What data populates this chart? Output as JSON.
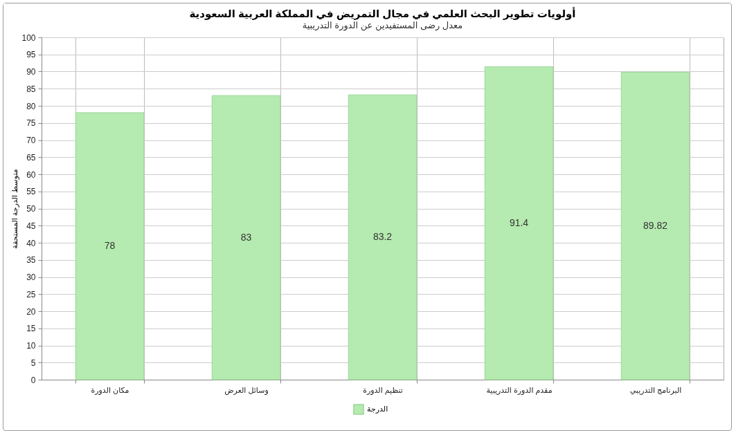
{
  "chart_data": {
    "type": "bar",
    "title": "أولويات تطوير البحث العلمي في مجال التمريض في المملكة العربية السعودية",
    "subtitle": "معدل رضى المستفيدين عن الدورة التدريبية",
    "ylabel": "متوسط الدرجة المستحقة",
    "categories": [
      "مكان الدورة",
      "وسائل العرض",
      "تنظيم الدورة",
      "مقدم الدورة التدريبية",
      "البرنامج التدريبي"
    ],
    "series": [
      {
        "name": "الدرجة",
        "color": "#b5eab0",
        "values": [
          78,
          83,
          83.2,
          91.4,
          89.82
        ]
      }
    ],
    "ylim": [
      0,
      100
    ],
    "yticks": [
      0,
      5,
      10,
      15,
      20,
      25,
      30,
      35,
      40,
      45,
      50,
      55,
      60,
      65,
      70,
      75,
      80,
      85,
      90,
      95,
      100
    ],
    "grid": true,
    "legend": "bottom",
    "data_labels": true
  }
}
